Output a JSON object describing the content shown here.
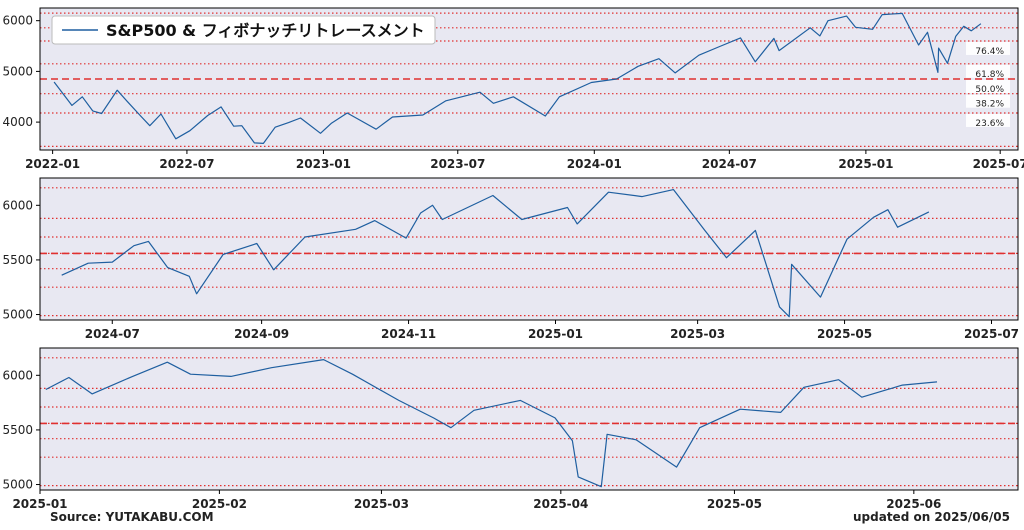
{
  "footer": {
    "source": "Source: YUTAKABU.COM",
    "updated": "updated on 2025/06/05"
  },
  "colors": {
    "line": "#1f5fa0",
    "panel_bg": "#e8e8f2",
    "fib_line": "#e03030",
    "frame": "#000000"
  },
  "chart_data": [
    {
      "type": "line",
      "legend": "S&P500 & フィボナッチリトレースメント",
      "legend_position": "top-left",
      "series_name": "S&P500",
      "xlim": [
        "2021-12-15",
        "2025-07-25"
      ],
      "ylim": [
        3450,
        6250
      ],
      "yticks": [
        4000,
        5000,
        6000
      ],
      "xticks": [
        "2022-01",
        "2022-07",
        "2023-01",
        "2023-07",
        "2024-01",
        "2024-07",
        "2025-01",
        "2025-07"
      ],
      "fib_levels": [
        {
          "label": "76.4%",
          "value": 5600
        },
        {
          "label": "61.8%",
          "value": 5150
        },
        {
          "label": "50.0%",
          "value": 4850,
          "dashed": true
        },
        {
          "label": "38.2%",
          "value": 4560
        },
        {
          "label": "23.6%",
          "value": 4180
        }
      ],
      "dotted_levels": [
        6150,
        5860,
        5600,
        5150,
        4560,
        4180,
        3520
      ],
      "points": [
        [
          "2022-01-03",
          4790
        ],
        [
          "2022-01-27",
          4330
        ],
        [
          "2022-02-10",
          4500
        ],
        [
          "2022-02-24",
          4220
        ],
        [
          "2022-03-08",
          4170
        ],
        [
          "2022-03-29",
          4630
        ],
        [
          "2022-04-12",
          4400
        ],
        [
          "2022-04-29",
          4130
        ],
        [
          "2022-05-12",
          3930
        ],
        [
          "2022-05-27",
          4160
        ],
        [
          "2022-06-16",
          3670
        ],
        [
          "2022-07-05",
          3830
        ],
        [
          "2022-07-29",
          4130
        ],
        [
          "2022-08-16",
          4300
        ],
        [
          "2022-09-02",
          3920
        ],
        [
          "2022-09-13",
          3930
        ],
        [
          "2022-09-30",
          3590
        ],
        [
          "2022-10-12",
          3580
        ],
        [
          "2022-10-28",
          3900
        ],
        [
          "2022-11-15",
          3990
        ],
        [
          "2022-12-01",
          4080
        ],
        [
          "2022-12-28",
          3780
        ],
        [
          "2023-01-12",
          3980
        ],
        [
          "2023-02-02",
          4180
        ],
        [
          "2023-03-13",
          3860
        ],
        [
          "2023-04-04",
          4100
        ],
        [
          "2023-05-15",
          4140
        ],
        [
          "2023-06-15",
          4420
        ],
        [
          "2023-07-31",
          4590
        ],
        [
          "2023-08-18",
          4370
        ],
        [
          "2023-09-14",
          4500
        ],
        [
          "2023-10-27",
          4120
        ],
        [
          "2023-11-15",
          4500
        ],
        [
          "2023-12-28",
          4780
        ],
        [
          "2024-01-31",
          4850
        ],
        [
          "2024-02-29",
          5100
        ],
        [
          "2024-03-28",
          5250
        ],
        [
          "2024-04-19",
          4970
        ],
        [
          "2024-05-21",
          5320
        ],
        [
          "2024-06-18",
          5490
        ],
        [
          "2024-07-16",
          5660
        ],
        [
          "2024-08-05",
          5190
        ],
        [
          "2024-08-30",
          5650
        ],
        [
          "2024-09-06",
          5410
        ],
        [
          "2024-10-18",
          5860
        ],
        [
          "2024-10-31",
          5700
        ],
        [
          "2024-11-11",
          6000
        ],
        [
          "2024-12-06",
          6090
        ],
        [
          "2024-12-18",
          5870
        ],
        [
          "2025-01-10",
          5830
        ],
        [
          "2025-01-23",
          6120
        ],
        [
          "2025-02-19",
          6144
        ],
        [
          "2025-03-13",
          5520
        ],
        [
          "2025-03-25",
          5770
        ],
        [
          "2025-04-08",
          4980
        ],
        [
          "2025-04-09",
          5460
        ],
        [
          "2025-04-21",
          5160
        ],
        [
          "2025-05-02",
          5690
        ],
        [
          "2025-05-13",
          5890
        ],
        [
          "2025-05-23",
          5800
        ],
        [
          "2025-06-05",
          5940
        ]
      ]
    },
    {
      "type": "line",
      "series_name": "S&P500",
      "xlim": [
        "2024-06-01",
        "2025-07-12"
      ],
      "ylim": [
        4950,
        6250
      ],
      "yticks": [
        5000,
        5500,
        6000
      ],
      "xticks": [
        "2024-07",
        "2024-09",
        "2024-11",
        "2025-01",
        "2025-03",
        "2025-05",
        "2025-07"
      ],
      "dashed_levels": [
        5560
      ],
      "dotted_levels": [
        6160,
        5880,
        5710,
        5560,
        5420,
        5250,
        4990
      ],
      "points": [
        [
          "2024-06-10",
          5360
        ],
        [
          "2024-06-21",
          5470
        ],
        [
          "2024-07-01",
          5480
        ],
        [
          "2024-07-10",
          5630
        ],
        [
          "2024-07-16",
          5670
        ],
        [
          "2024-07-24",
          5430
        ],
        [
          "2024-08-02",
          5350
        ],
        [
          "2024-08-05",
          5190
        ],
        [
          "2024-08-16",
          5550
        ],
        [
          "2024-08-30",
          5650
        ],
        [
          "2024-09-06",
          5410
        ],
        [
          "2024-09-19",
          5710
        ],
        [
          "2024-10-10",
          5780
        ],
        [
          "2024-10-18",
          5860
        ],
        [
          "2024-10-31",
          5700
        ],
        [
          "2024-11-06",
          5930
        ],
        [
          "2024-11-11",
          6000
        ],
        [
          "2024-11-15",
          5870
        ],
        [
          "2024-12-06",
          6090
        ],
        [
          "2024-12-18",
          5870
        ],
        [
          "2025-01-06",
          5980
        ],
        [
          "2025-01-10",
          5830
        ],
        [
          "2025-01-23",
          6120
        ],
        [
          "2025-02-06",
          6080
        ],
        [
          "2025-02-19",
          6144
        ],
        [
          "2025-03-04",
          5770
        ],
        [
          "2025-03-13",
          5520
        ],
        [
          "2025-03-25",
          5770
        ],
        [
          "2025-04-04",
          5070
        ],
        [
          "2025-04-08",
          4980
        ],
        [
          "2025-04-09",
          5460
        ],
        [
          "2025-04-21",
          5160
        ],
        [
          "2025-05-02",
          5690
        ],
        [
          "2025-05-13",
          5890
        ],
        [
          "2025-05-19",
          5960
        ],
        [
          "2025-05-23",
          5800
        ],
        [
          "2025-06-05",
          5940
        ]
      ]
    },
    {
      "type": "line",
      "series_name": "S&P500",
      "xlim": [
        "2025-01-01",
        "2025-06-19"
      ],
      "ylim": [
        4950,
        6250
      ],
      "yticks": [
        5000,
        5500,
        6000
      ],
      "xticks": [
        "2025-01",
        "2025-02",
        "2025-03",
        "2025-04",
        "2025-05",
        "2025-06"
      ],
      "dashed_levels": [
        5560
      ],
      "dotted_levels": [
        6160,
        5880,
        5710,
        5560,
        5420,
        5250,
        4990
      ],
      "points": [
        [
          "2025-01-02",
          5870
        ],
        [
          "2025-01-06",
          5980
        ],
        [
          "2025-01-10",
          5830
        ],
        [
          "2025-01-17",
          5990
        ],
        [
          "2025-01-23",
          6120
        ],
        [
          "2025-01-27",
          6010
        ],
        [
          "2025-02-03",
          5990
        ],
        [
          "2025-02-10",
          6070
        ],
        [
          "2025-02-19",
          6144
        ],
        [
          "2025-02-24",
          6010
        ],
        [
          "2025-03-04",
          5770
        ],
        [
          "2025-03-10",
          5610
        ],
        [
          "2025-03-13",
          5520
        ],
        [
          "2025-03-17",
          5680
        ],
        [
          "2025-03-25",
          5770
        ],
        [
          "2025-03-31",
          5610
        ],
        [
          "2025-04-03",
          5400
        ],
        [
          "2025-04-04",
          5070
        ],
        [
          "2025-04-08",
          4980
        ],
        [
          "2025-04-09",
          5460
        ],
        [
          "2025-04-14",
          5410
        ],
        [
          "2025-04-21",
          5160
        ],
        [
          "2025-04-25",
          5520
        ],
        [
          "2025-05-02",
          5690
        ],
        [
          "2025-05-09",
          5660
        ],
        [
          "2025-05-13",
          5890
        ],
        [
          "2025-05-19",
          5960
        ],
        [
          "2025-05-23",
          5800
        ],
        [
          "2025-05-30",
          5910
        ],
        [
          "2025-06-05",
          5940
        ]
      ]
    }
  ]
}
